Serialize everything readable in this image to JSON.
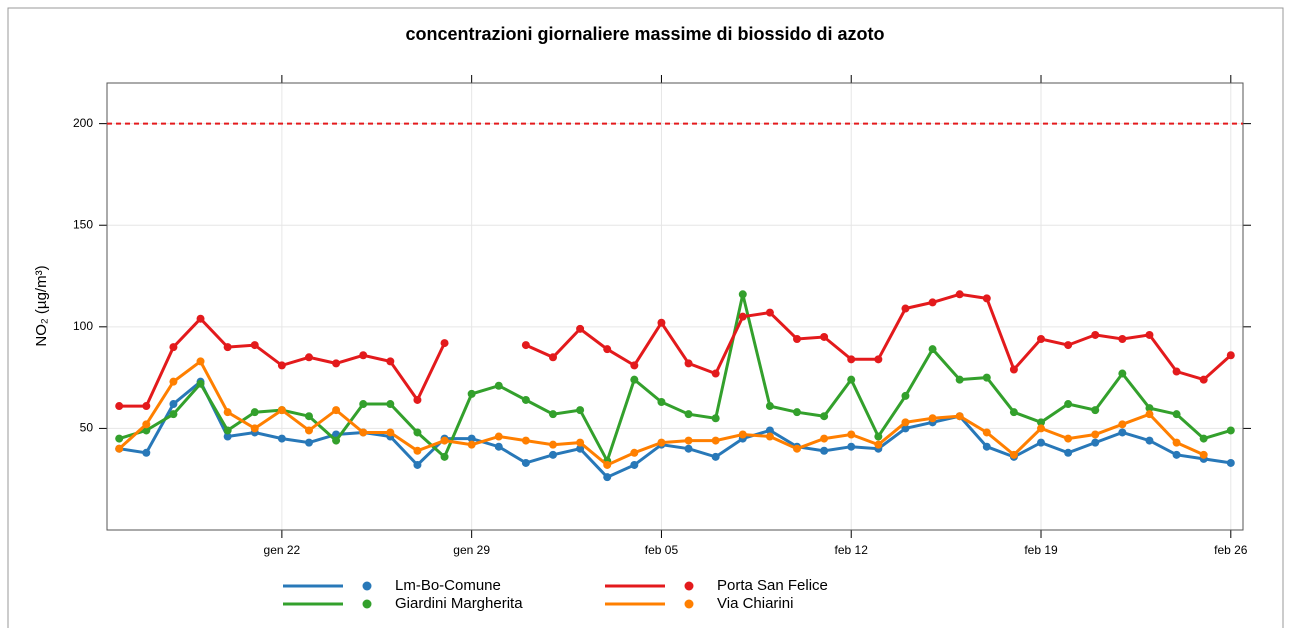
{
  "chart_data": {
    "type": "line",
    "title": "concentrazioni giornaliere massime di biossido di azoto",
    "y_label": "NO₂ (µg/m³)",
    "x": [
      "gen 16",
      "gen 17",
      "gen 18",
      "gen 19",
      "gen 20",
      "gen 21",
      "gen 22",
      "gen 23",
      "gen 24",
      "gen 25",
      "gen 26",
      "gen 27",
      "gen 28",
      "gen 29",
      "gen 30",
      "gen 31",
      "feb 01",
      "feb 02",
      "feb 03",
      "feb 04",
      "feb 05",
      "feb 06",
      "feb 07",
      "feb 08",
      "feb 09",
      "feb 10",
      "feb 11",
      "feb 12",
      "feb 13",
      "feb 14",
      "feb 15",
      "feb 16",
      "feb 17",
      "feb 18",
      "feb 19",
      "feb 20",
      "feb 21",
      "feb 22",
      "feb 23",
      "feb 24",
      "feb 25",
      "feb 26"
    ],
    "xticks": [
      "gen 22",
      "gen 29",
      "feb 05",
      "feb 12",
      "feb 19",
      "feb 26"
    ],
    "ylim": [
      0,
      220
    ],
    "yticks": [
      50,
      100,
      150,
      200
    ],
    "grid": true,
    "reference_line": {
      "value": 200,
      "color": "#e41a1c"
    },
    "series": [
      {
        "name": "Lm-Bo-Comune",
        "color": "#2878b8",
        "values": [
          40,
          38,
          62,
          73,
          46,
          48,
          45,
          43,
          47,
          48,
          46,
          32,
          45,
          45,
          41,
          33,
          37,
          40,
          26,
          32,
          42,
          40,
          36,
          45,
          49,
          41,
          39,
          41,
          40,
          50,
          53,
          56,
          41,
          36,
          43,
          38,
          43,
          48,
          44,
          37,
          35,
          33
        ]
      },
      {
        "name": "Giardini Margherita",
        "color": "#33a02c",
        "values": [
          45,
          49,
          57,
          72,
          49,
          58,
          59,
          56,
          44,
          62,
          62,
          48,
          36,
          67,
          71,
          64,
          57,
          59,
          34,
          74,
          63,
          57,
          55,
          116,
          61,
          58,
          56,
          74,
          46,
          66,
          89,
          74,
          75,
          58,
          53,
          62,
          59,
          77,
          60,
          57,
          45,
          49
        ]
      },
      {
        "name": "Porta San Felice",
        "color": "#e31a1c",
        "values": [
          61,
          61,
          90,
          104,
          90,
          91,
          81,
          85,
          82,
          86,
          83,
          64,
          92,
          null,
          null,
          91,
          85,
          99,
          89,
          81,
          102,
          82,
          77,
          105,
          107,
          94,
          95,
          84,
          84,
          109,
          112,
          116,
          114,
          79,
          94,
          91,
          96,
          94,
          96,
          78,
          74,
          86
        ]
      },
      {
        "name": "Via Chiarini",
        "color": "#ff7f00",
        "values": [
          40,
          52,
          73,
          83,
          58,
          50,
          59,
          49,
          59,
          48,
          48,
          39,
          44,
          42,
          46,
          44,
          42,
          43,
          32,
          38,
          43,
          44,
          44,
          47,
          46,
          40,
          45,
          47,
          42,
          53,
          55,
          56,
          48,
          37,
          50,
          45,
          47,
          52,
          57,
          43,
          37,
          null
        ]
      }
    ]
  }
}
